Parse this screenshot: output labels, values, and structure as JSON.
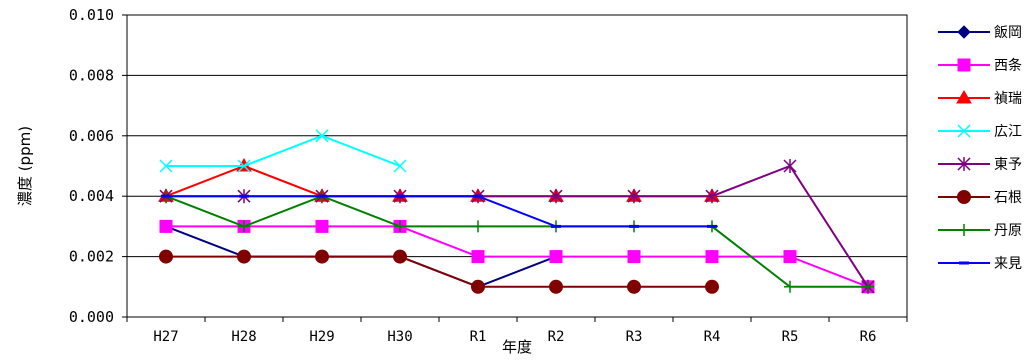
{
  "chart_data": {
    "type": "line",
    "xlabel": "年度",
    "ylabel": "濃度 (ppm)",
    "categories": [
      "H27",
      "H28",
      "H29",
      "H30",
      "R1",
      "R2",
      "R3",
      "R4",
      "R5",
      "R6"
    ],
    "ylim": [
      0,
      0.01
    ],
    "yticks": [
      "0.000",
      "0.002",
      "0.004",
      "0.006",
      "0.008",
      "0.010"
    ],
    "ytick_values": [
      0,
      0.002,
      0.004,
      0.006,
      0.008,
      0.01
    ],
    "grid": "horizontal",
    "legend_position": "right",
    "series": [
      {
        "name": "飯岡",
        "color": "#000080",
        "marker": "diamond",
        "values": [
          0.003,
          0.002,
          0.002,
          0.002,
          0.001,
          0.002,
          null,
          null,
          null,
          null
        ]
      },
      {
        "name": "西条",
        "color": "#FF00FF",
        "marker": "square",
        "values": [
          0.003,
          0.003,
          0.003,
          0.003,
          0.002,
          0.002,
          0.002,
          0.002,
          0.002,
          0.001
        ]
      },
      {
        "name": "禎瑞",
        "color": "#FF0000",
        "marker": "triangle",
        "values": [
          0.004,
          0.005,
          0.004,
          0.004,
          0.004,
          0.004,
          0.004,
          0.004,
          null,
          null
        ]
      },
      {
        "name": "広江",
        "color": "#00FFFF",
        "marker": "x",
        "values": [
          0.005,
          0.005,
          0.006,
          0.005,
          null,
          null,
          null,
          null,
          null,
          null
        ]
      },
      {
        "name": "東予",
        "color": "#800080",
        "marker": "star",
        "values": [
          0.004,
          0.004,
          0.004,
          0.004,
          0.004,
          0.004,
          0.004,
          0.004,
          0.005,
          0.001
        ]
      },
      {
        "name": "石根",
        "color": "#800000",
        "marker": "circle",
        "values": [
          0.002,
          0.002,
          0.002,
          0.002,
          0.001,
          0.001,
          0.001,
          0.001,
          null,
          null
        ]
      },
      {
        "name": "丹原",
        "color": "#008000",
        "marker": "plus",
        "values": [
          0.004,
          0.003,
          0.004,
          0.003,
          0.003,
          0.003,
          0.003,
          0.003,
          0.001,
          0.001
        ]
      },
      {
        "name": "来見",
        "color": "#0000FF",
        "marker": "dash",
        "values": [
          0.004,
          0.004,
          0.004,
          0.004,
          0.004,
          0.003,
          0.003,
          0.003,
          null,
          null
        ]
      }
    ]
  }
}
